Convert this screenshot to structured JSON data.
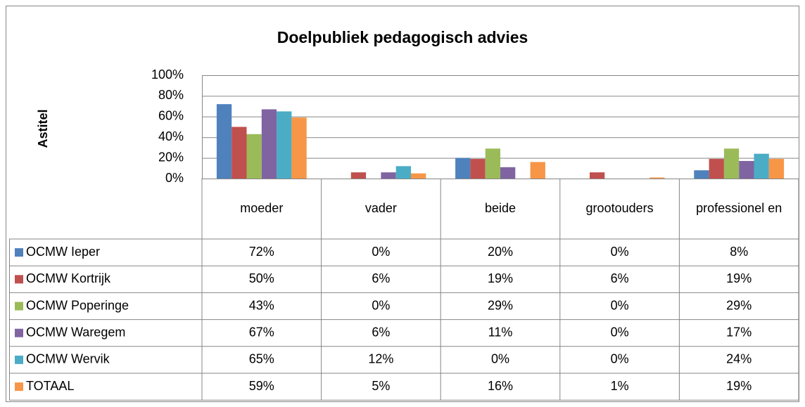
{
  "chart_data": {
    "type": "bar",
    "title": "Doelpubliek pedagogisch advies",
    "y_label": "Astitel",
    "categories": [
      "moeder",
      "vader",
      "beide",
      "grootouders",
      "professionel en"
    ],
    "ylim": [
      0,
      100
    ],
    "yticks": [
      {
        "value": 0,
        "label": "0%"
      },
      {
        "value": 20,
        "label": "20%"
      },
      {
        "value": 40,
        "label": "40%"
      },
      {
        "value": 60,
        "label": "60%"
      },
      {
        "value": 80,
        "label": "80%"
      },
      {
        "value": 100,
        "label": "100%"
      }
    ],
    "grid": true,
    "series": [
      {
        "name": "OCMW Ieper",
        "color": "#4f81bd",
        "values": [
          72,
          0,
          20,
          0,
          8
        ],
        "value_labels": [
          "72%",
          "0%",
          "20%",
          "0%",
          "8%"
        ]
      },
      {
        "name": "OCMW Kortrijk",
        "color": "#c0504d",
        "values": [
          50,
          6,
          19,
          6,
          19
        ],
        "value_labels": [
          "50%",
          "6%",
          "19%",
          "6%",
          "19%"
        ]
      },
      {
        "name": "OCMW Poperinge",
        "color": "#9bbb59",
        "values": [
          43,
          0,
          29,
          0,
          29
        ],
        "value_labels": [
          "43%",
          "0%",
          "29%",
          "0%",
          "29%"
        ]
      },
      {
        "name": "OCMW Waregem",
        "color": "#8064a2",
        "values": [
          67,
          6,
          11,
          0,
          17
        ],
        "value_labels": [
          "67%",
          "6%",
          "11%",
          "0%",
          "17%"
        ]
      },
      {
        "name": "OCMW Wervik",
        "color": "#4bacc6",
        "values": [
          65,
          12,
          0,
          0,
          24
        ],
        "value_labels": [
          "65%",
          "12%",
          "0%",
          "0%",
          "24%"
        ]
      },
      {
        "name": "TOTAAL",
        "color": "#f79646",
        "values": [
          59,
          5,
          16,
          1,
          19
        ],
        "value_labels": [
          "59%",
          "5%",
          "16%",
          "1%",
          "19%"
        ]
      }
    ]
  }
}
